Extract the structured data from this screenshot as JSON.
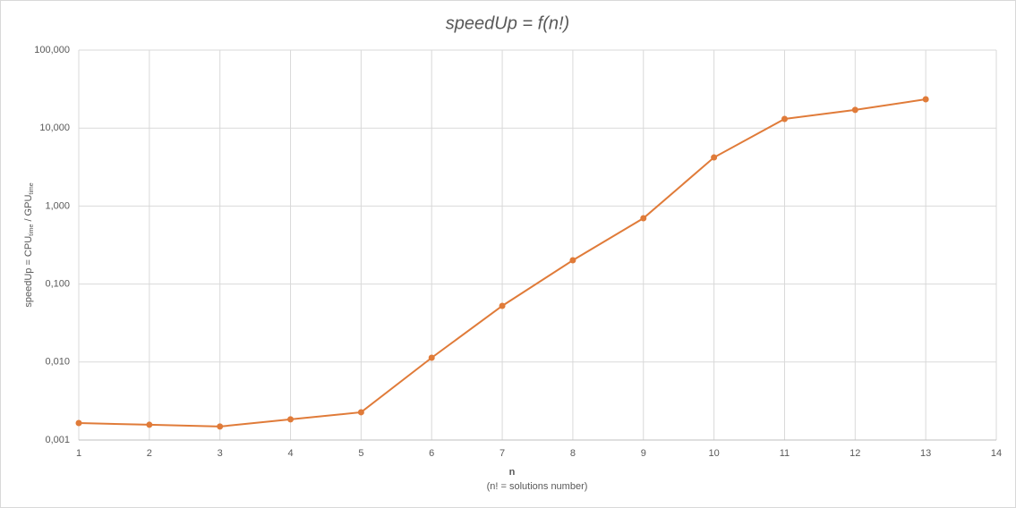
{
  "chart_data": {
    "type": "line",
    "title": "speedUp  = f(n!)",
    "x_label": "n",
    "x_sublabel": "(n! = solutions number)",
    "y_label_parts": [
      "speedUp = CPU",
      "time",
      " / GPU",
      "time"
    ],
    "x": [
      1,
      2,
      3,
      4,
      5,
      6,
      7,
      8,
      9,
      10,
      11,
      12,
      13
    ],
    "series": [
      {
        "name": "speedUp",
        "color": "#e07b39",
        "values": [
          0.00165,
          0.00157,
          0.00149,
          0.00184,
          0.00227,
          0.01135,
          0.0525,
          0.202,
          0.698,
          4.2,
          13.1,
          17.1,
          23.4
        ]
      }
    ],
    "xlim": [
      1,
      14
    ],
    "xticks": [
      1,
      2,
      3,
      4,
      5,
      6,
      7,
      8,
      9,
      10,
      11,
      12,
      13,
      14
    ],
    "ylim": [
      0.001,
      100
    ],
    "yticks": [
      {
        "value": 0.001,
        "label": "0,001"
      },
      {
        "value": 0.01,
        "label": "0,010"
      },
      {
        "value": 0.1,
        "label": "0,100"
      },
      {
        "value": 1,
        "label": "1,000"
      },
      {
        "value": 10,
        "label": "10,000"
      },
      {
        "value": 100,
        "label": "100,000"
      }
    ],
    "y_log": true,
    "grid": true
  }
}
